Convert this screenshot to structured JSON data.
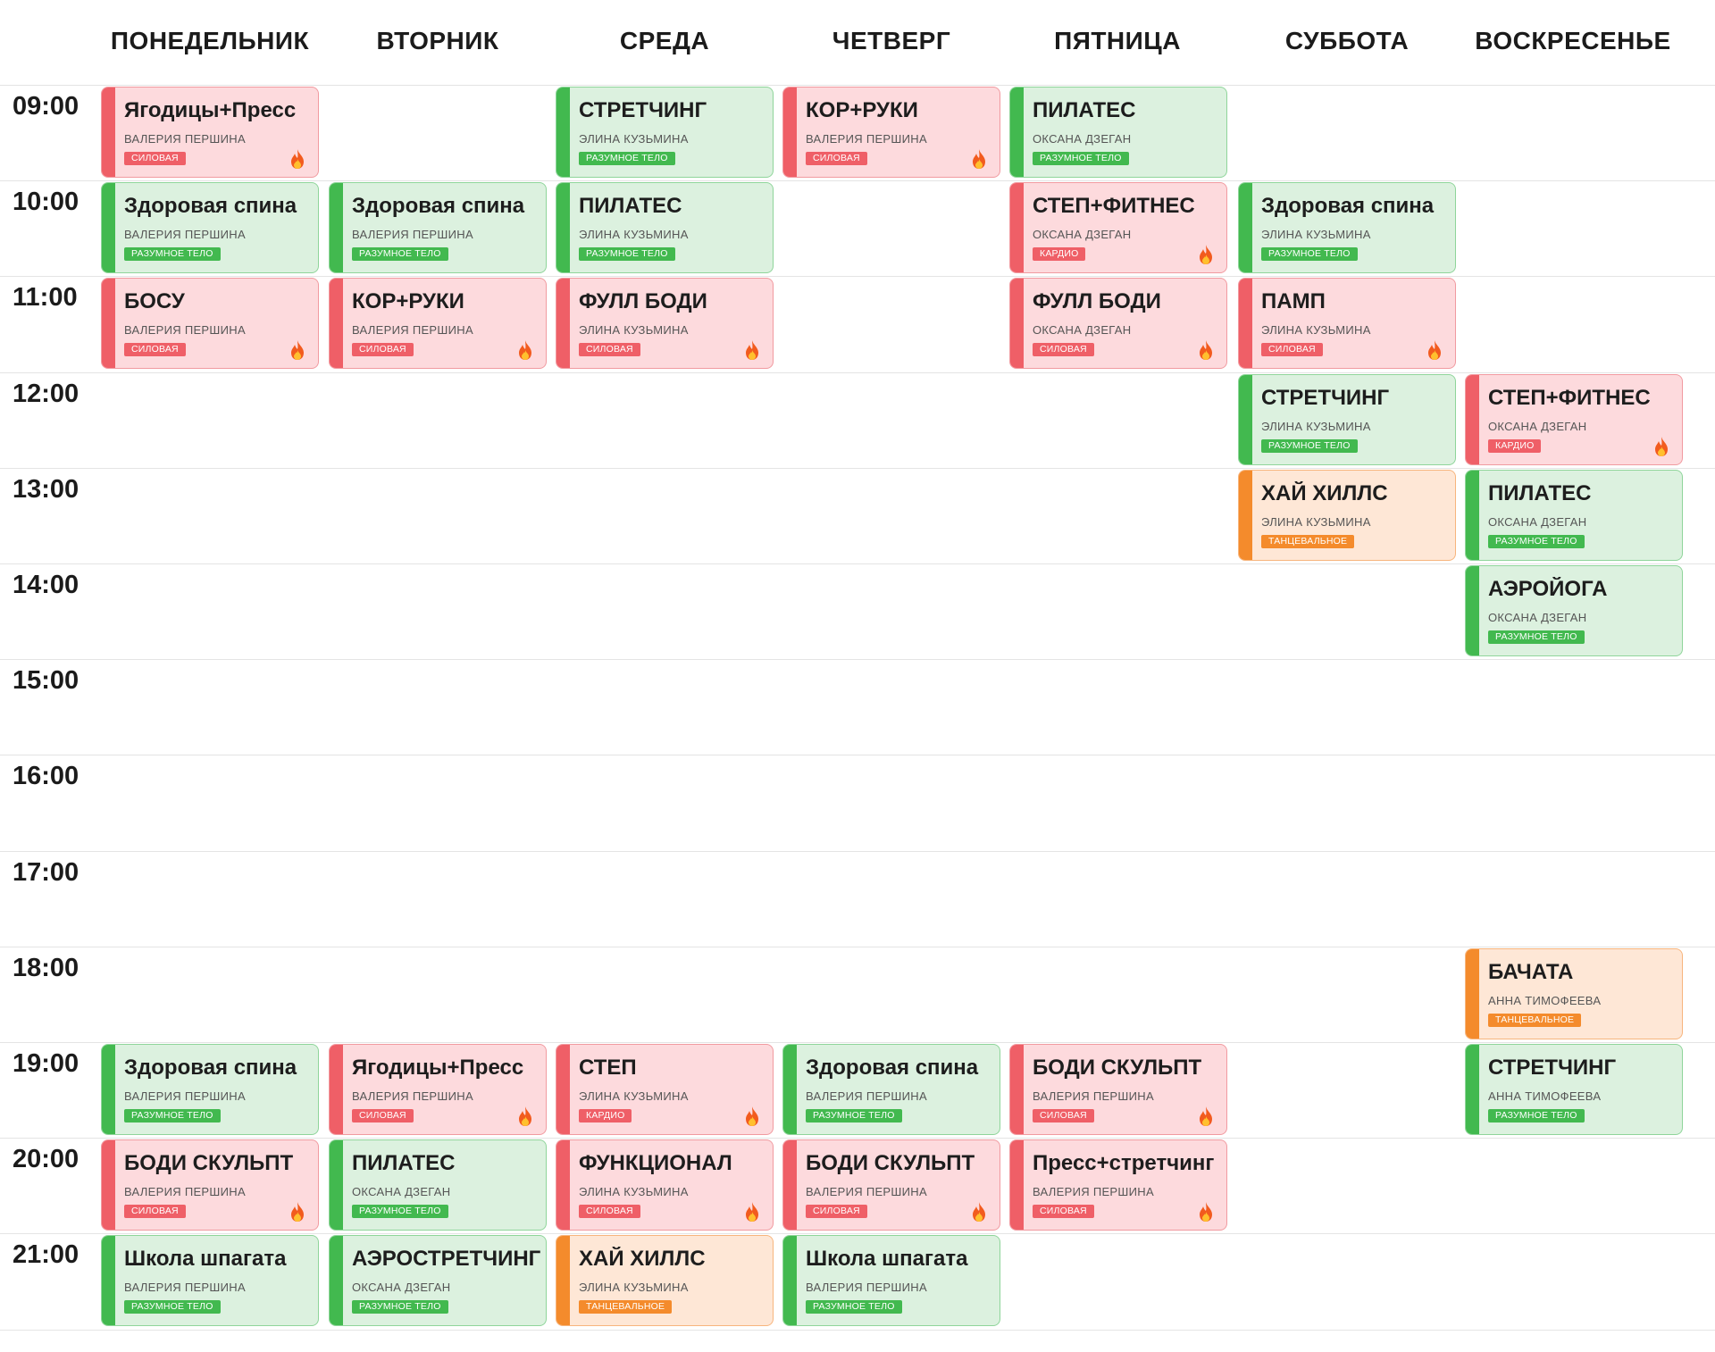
{
  "days": [
    "ПОНЕДЕЛЬНИК",
    "ВТОРНИК",
    "СРЕДА",
    "ЧЕТВЕРГ",
    "ПЯТНИЦА",
    "СУББОТА",
    "ВОСКРЕСЕНЬЕ"
  ],
  "times": [
    "09:00",
    "10:00",
    "11:00",
    "12:00",
    "13:00",
    "14:00",
    "15:00",
    "16:00",
    "17:00",
    "18:00",
    "19:00",
    "20:00",
    "21:00"
  ],
  "colors": {
    "silovaya": "#ef5f67",
    "razumnoe": "#42b94f",
    "tancy": "#f48b2c"
  },
  "classes": [
    {
      "day": 0,
      "slot": 0,
      "title": "Ягодицы+Пресс",
      "trainer": "ВАЛЕРИЯ ПЕРШИНА",
      "tag": "СИЛОВАЯ",
      "color": "red",
      "icon": "fire-icon"
    },
    {
      "day": 2,
      "slot": 0,
      "title": "СТРЕТЧИНГ",
      "trainer": "ЭЛИНА КУЗЬМИНА",
      "tag": "РАЗУМНОЕ ТЕЛО",
      "color": "green",
      "icon": ""
    },
    {
      "day": 3,
      "slot": 0,
      "title": "КОР+РУКИ",
      "trainer": "ВАЛЕРИЯ ПЕРШИНА",
      "tag": "СИЛОВАЯ",
      "color": "red",
      "icon": "fire-icon"
    },
    {
      "day": 4,
      "slot": 0,
      "title": "ПИЛАТЕС",
      "trainer": "ОКСАНА ДЗЕГАН",
      "tag": "РАЗУМНОЕ ТЕЛО",
      "color": "green",
      "icon": ""
    },
    {
      "day": 0,
      "slot": 1,
      "title": "Здоровая спина",
      "trainer": "ВАЛЕРИЯ ПЕРШИНА",
      "tag": "РАЗУМНОЕ ТЕЛО",
      "color": "green",
      "icon": ""
    },
    {
      "day": 1,
      "slot": 1,
      "title": "Здоровая спина",
      "trainer": "ВАЛЕРИЯ ПЕРШИНА",
      "tag": "РАЗУМНОЕ ТЕЛО",
      "color": "green",
      "icon": ""
    },
    {
      "day": 2,
      "slot": 1,
      "title": "ПИЛАТЕС",
      "trainer": "ЭЛИНА КУЗЬМИНА",
      "tag": "РАЗУМНОЕ ТЕЛО",
      "color": "green",
      "icon": ""
    },
    {
      "day": 4,
      "slot": 1,
      "title": "СТЕП+ФИТНЕС",
      "trainer": "ОКСАНА ДЗЕГАН",
      "tag": "КАРДИО",
      "color": "red",
      "icon": "fire-icon"
    },
    {
      "day": 5,
      "slot": 1,
      "title": "Здоровая спина",
      "trainer": "ЭЛИНА КУЗЬМИНА",
      "tag": "РАЗУМНОЕ ТЕЛО",
      "color": "green",
      "icon": ""
    },
    {
      "day": 0,
      "slot": 2,
      "title": "БОСУ",
      "trainer": "ВАЛЕРИЯ ПЕРШИНА",
      "tag": "СИЛОВАЯ",
      "color": "red",
      "icon": "fire-icon"
    },
    {
      "day": 1,
      "slot": 2,
      "title": "КОР+РУКИ",
      "trainer": "ВАЛЕРИЯ ПЕРШИНА",
      "tag": "СИЛОВАЯ",
      "color": "red",
      "icon": "fire-icon"
    },
    {
      "day": 2,
      "slot": 2,
      "title": "ФУЛЛ БОДИ",
      "trainer": "ЭЛИНА КУЗЬМИНА",
      "tag": "СИЛОВАЯ",
      "color": "red",
      "icon": "fire-icon"
    },
    {
      "day": 4,
      "slot": 2,
      "title": "ФУЛЛ БОДИ",
      "trainer": "ОКСАНА ДЗЕГАН",
      "tag": "СИЛОВАЯ",
      "color": "red",
      "icon": "fire-icon"
    },
    {
      "day": 5,
      "slot": 2,
      "title": "ПАМП",
      "trainer": "ЭЛИНА КУЗЬМИНА",
      "tag": "СИЛОВАЯ",
      "color": "red",
      "icon": "fire-icon"
    },
    {
      "day": 5,
      "slot": 3,
      "title": "СТРЕТЧИНГ",
      "trainer": "ЭЛИНА КУЗЬМИНА",
      "tag": "РАЗУМНОЕ ТЕЛО",
      "color": "green",
      "icon": ""
    },
    {
      "day": 6,
      "slot": 3,
      "title": "СТЕП+ФИТНЕС",
      "trainer": "ОКСАНА ДЗЕГАН",
      "tag": "КАРДИО",
      "color": "red",
      "icon": "fire-icon"
    },
    {
      "day": 5,
      "slot": 4,
      "title": "ХАЙ ХИЛЛС",
      "trainer": "ЭЛИНА КУЗЬМИНА",
      "tag": "ТАНЦЕВАЛЬНОЕ",
      "color": "orange",
      "icon": ""
    },
    {
      "day": 6,
      "slot": 4,
      "title": "ПИЛАТЕС",
      "trainer": "ОКСАНА ДЗЕГАН",
      "tag": "РАЗУМНОЕ ТЕЛО",
      "color": "green",
      "icon": ""
    },
    {
      "day": 6,
      "slot": 5,
      "title": "АЭРОЙОГА",
      "trainer": "ОКСАНА ДЗЕГАН",
      "tag": "РАЗУМНОЕ ТЕЛО",
      "color": "green",
      "icon": ""
    },
    {
      "day": 6,
      "slot": 9,
      "title": "БАЧАТА",
      "trainer": "АННА ТИМОФЕЕВА",
      "tag": "ТАНЦЕВАЛЬНОЕ",
      "color": "orange",
      "icon": ""
    },
    {
      "day": 0,
      "slot": 10,
      "title": "Здоровая спина",
      "trainer": "ВАЛЕРИЯ ПЕРШИНА",
      "tag": "РАЗУМНОЕ ТЕЛО",
      "color": "green",
      "icon": ""
    },
    {
      "day": 1,
      "slot": 10,
      "title": "Ягодицы+Пресс",
      "trainer": "ВАЛЕРИЯ ПЕРШИНА",
      "tag": "СИЛОВАЯ",
      "color": "red",
      "icon": "fire-icon"
    },
    {
      "day": 2,
      "slot": 10,
      "title": "СТЕП",
      "trainer": "ЭЛИНА КУЗЬМИНА",
      "tag": "КАРДИО",
      "color": "red",
      "icon": "fire-icon"
    },
    {
      "day": 3,
      "slot": 10,
      "title": "Здоровая спина",
      "trainer": "ВАЛЕРИЯ ПЕРШИНА",
      "tag": "РАЗУМНОЕ ТЕЛО",
      "color": "green",
      "icon": ""
    },
    {
      "day": 4,
      "slot": 10,
      "title": "БОДИ СКУЛЬПТ",
      "trainer": "ВАЛЕРИЯ ПЕРШИНА",
      "tag": "СИЛОВАЯ",
      "color": "red",
      "icon": "fire-icon"
    },
    {
      "day": 6,
      "slot": 10,
      "title": "СТРЕТЧИНГ",
      "trainer": "АННА ТИМОФЕЕВА",
      "tag": "РАЗУМНОЕ ТЕЛО",
      "color": "green",
      "icon": ""
    },
    {
      "day": 0,
      "slot": 11,
      "title": "БОДИ СКУЛЬПТ",
      "trainer": "ВАЛЕРИЯ ПЕРШИНА",
      "tag": "СИЛОВАЯ",
      "color": "red",
      "icon": "fire-icon"
    },
    {
      "day": 1,
      "slot": 11,
      "title": "ПИЛАТЕС",
      "trainer": "ОКСАНА ДЗЕГАН",
      "tag": "РАЗУМНОЕ ТЕЛО",
      "color": "green",
      "icon": ""
    },
    {
      "day": 2,
      "slot": 11,
      "title": "ФУНКЦИОНАЛ",
      "trainer": "ЭЛИНА КУЗЬМИНА",
      "tag": "СИЛОВАЯ",
      "color": "red",
      "icon": "fire-icon"
    },
    {
      "day": 3,
      "slot": 11,
      "title": "БОДИ СКУЛЬПТ",
      "trainer": "ВАЛЕРИЯ ПЕРШИНА",
      "tag": "СИЛОВАЯ",
      "color": "red",
      "icon": "fire-icon"
    },
    {
      "day": 4,
      "slot": 11,
      "title": "Пресс+стретчинг",
      "trainer": "ВАЛЕРИЯ ПЕРШИНА",
      "tag": "СИЛОВАЯ",
      "color": "red",
      "icon": "fire-icon"
    },
    {
      "day": 0,
      "slot": 12,
      "title": "Школа шпагата",
      "trainer": "ВАЛЕРИЯ ПЕРШИНА",
      "tag": "РАЗУМНОЕ ТЕЛО",
      "color": "green",
      "icon": ""
    },
    {
      "day": 1,
      "slot": 12,
      "title": "АЭРОСТРЕТЧИНГ",
      "trainer": "ОКСАНА ДЗЕГАН",
      "tag": "РАЗУМНОЕ ТЕЛО",
      "color": "green",
      "icon": ""
    },
    {
      "day": 2,
      "slot": 12,
      "title": "ХАЙ ХИЛЛС",
      "trainer": "ЭЛИНА КУЗЬМИНА",
      "tag": "ТАНЦЕВАЛЬНОЕ",
      "color": "orange",
      "icon": ""
    },
    {
      "day": 3,
      "slot": 12,
      "title": "Школа шпагата",
      "trainer": "ВАЛЕРИЯ ПЕРШИНА",
      "tag": "РАЗУМНОЕ ТЕЛО",
      "color": "green",
      "icon": ""
    }
  ]
}
